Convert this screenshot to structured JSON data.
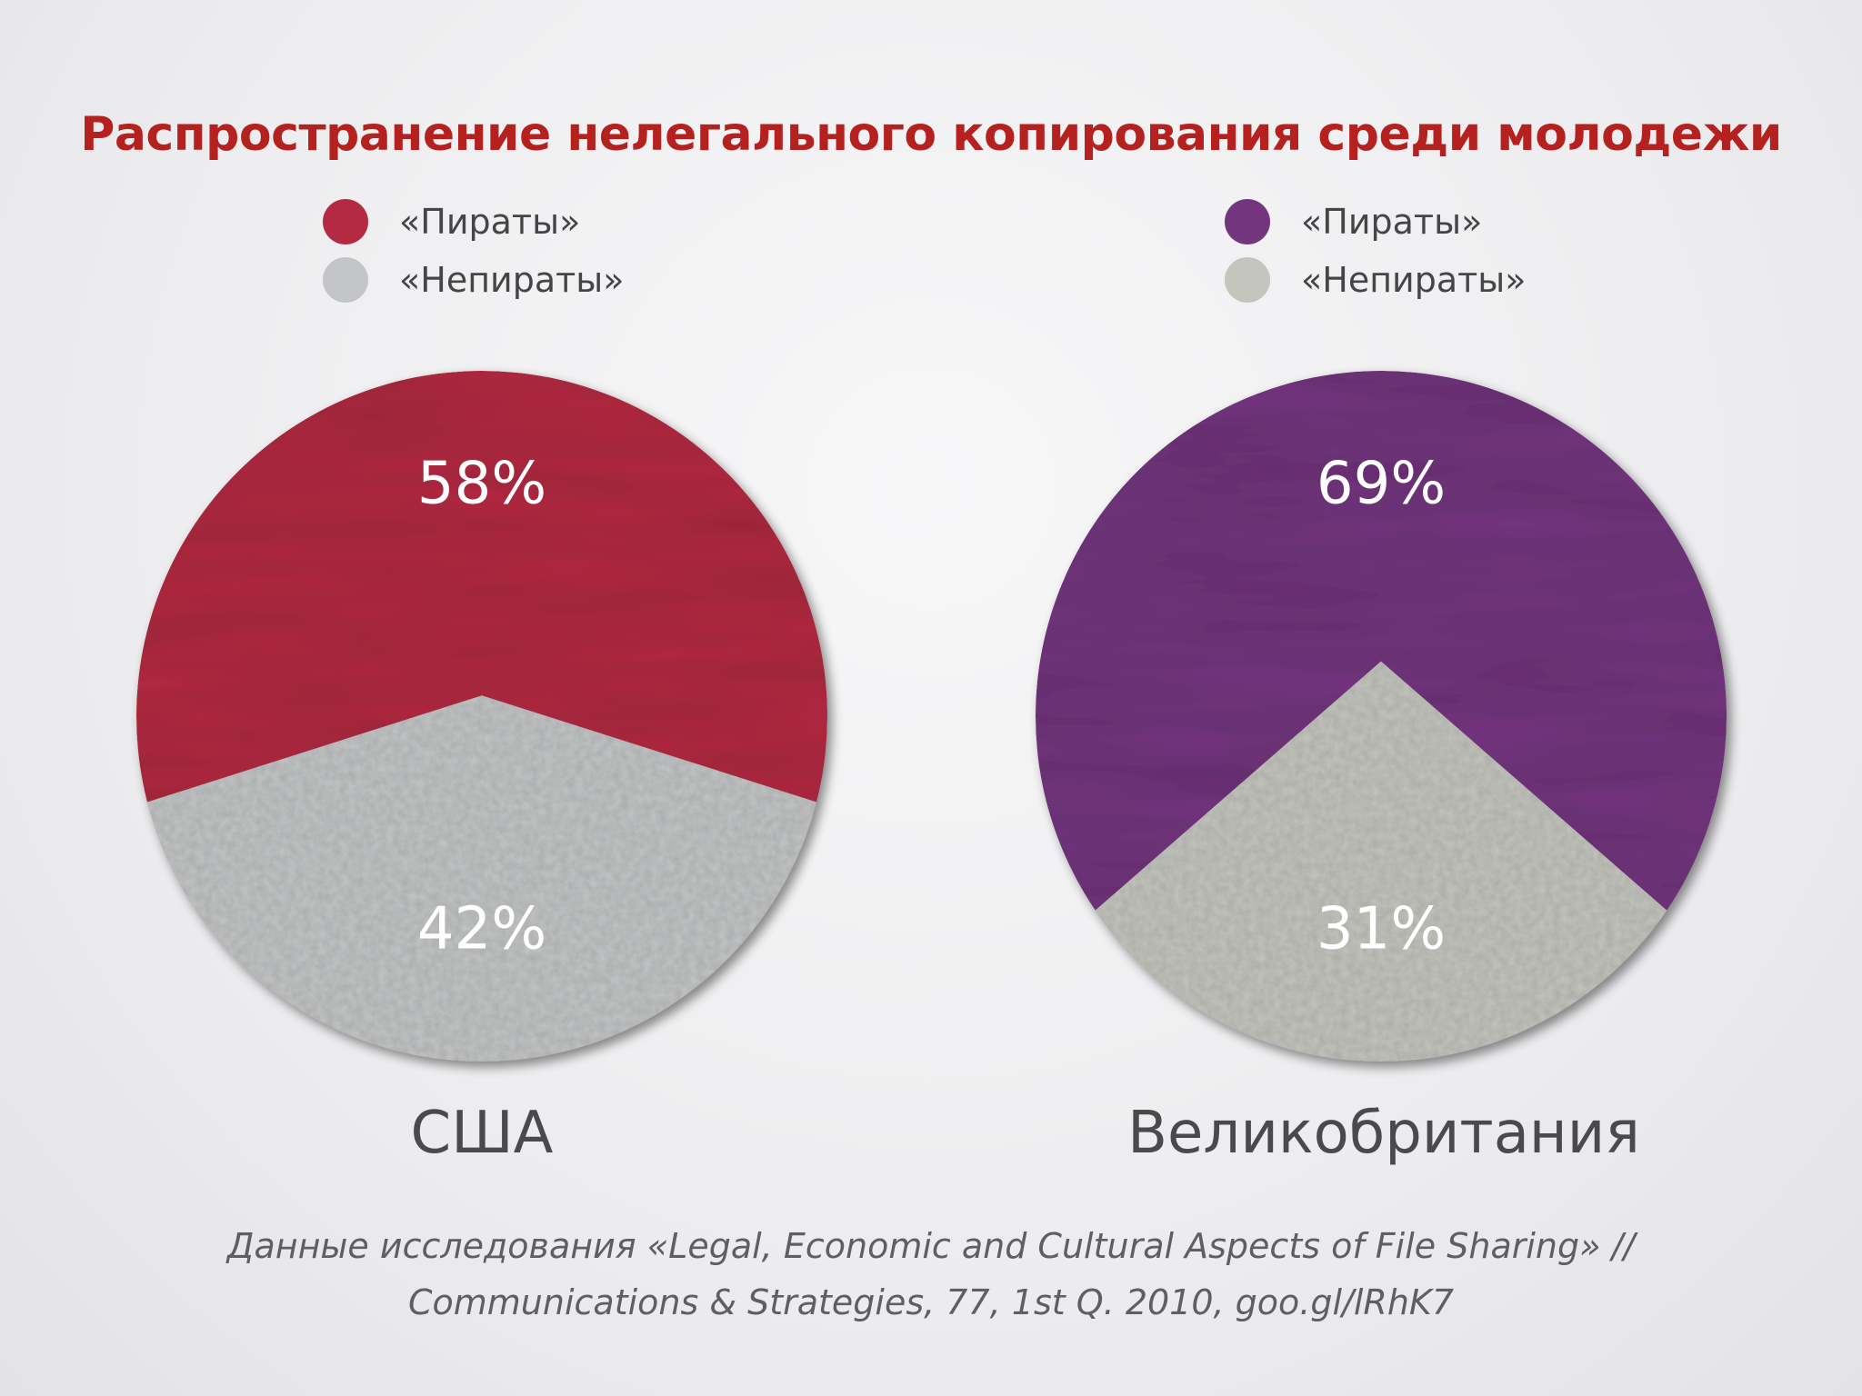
{
  "slide": {
    "title": "Распространение нелегального копирования среди молодежи",
    "source_line1": "Данные исследования «Legal, Economic and Cultural Aspects of File Sharing» //",
    "source_line2": "Communications & Strategies, 77, 1st Q. 2010, goo.gl/lRhK7"
  },
  "chart_data": [
    {
      "type": "pie",
      "title": "США",
      "categories": [
        "«Пираты»",
        "«Непираты»"
      ],
      "values": [
        58,
        42
      ],
      "value_labels": [
        "58%",
        "42%"
      ],
      "colors": [
        "#b42a42",
        "#c3c5c6"
      ],
      "legend_position": "top"
    },
    {
      "type": "pie",
      "title": "Великобритания",
      "categories": [
        "«Пираты»",
        "«Непираты»"
      ],
      "values": [
        69,
        31
      ],
      "value_labels": [
        "69%",
        "31%"
      ],
      "colors": [
        "#74357f",
        "#c4c5bd"
      ],
      "legend_position": "top"
    }
  ]
}
